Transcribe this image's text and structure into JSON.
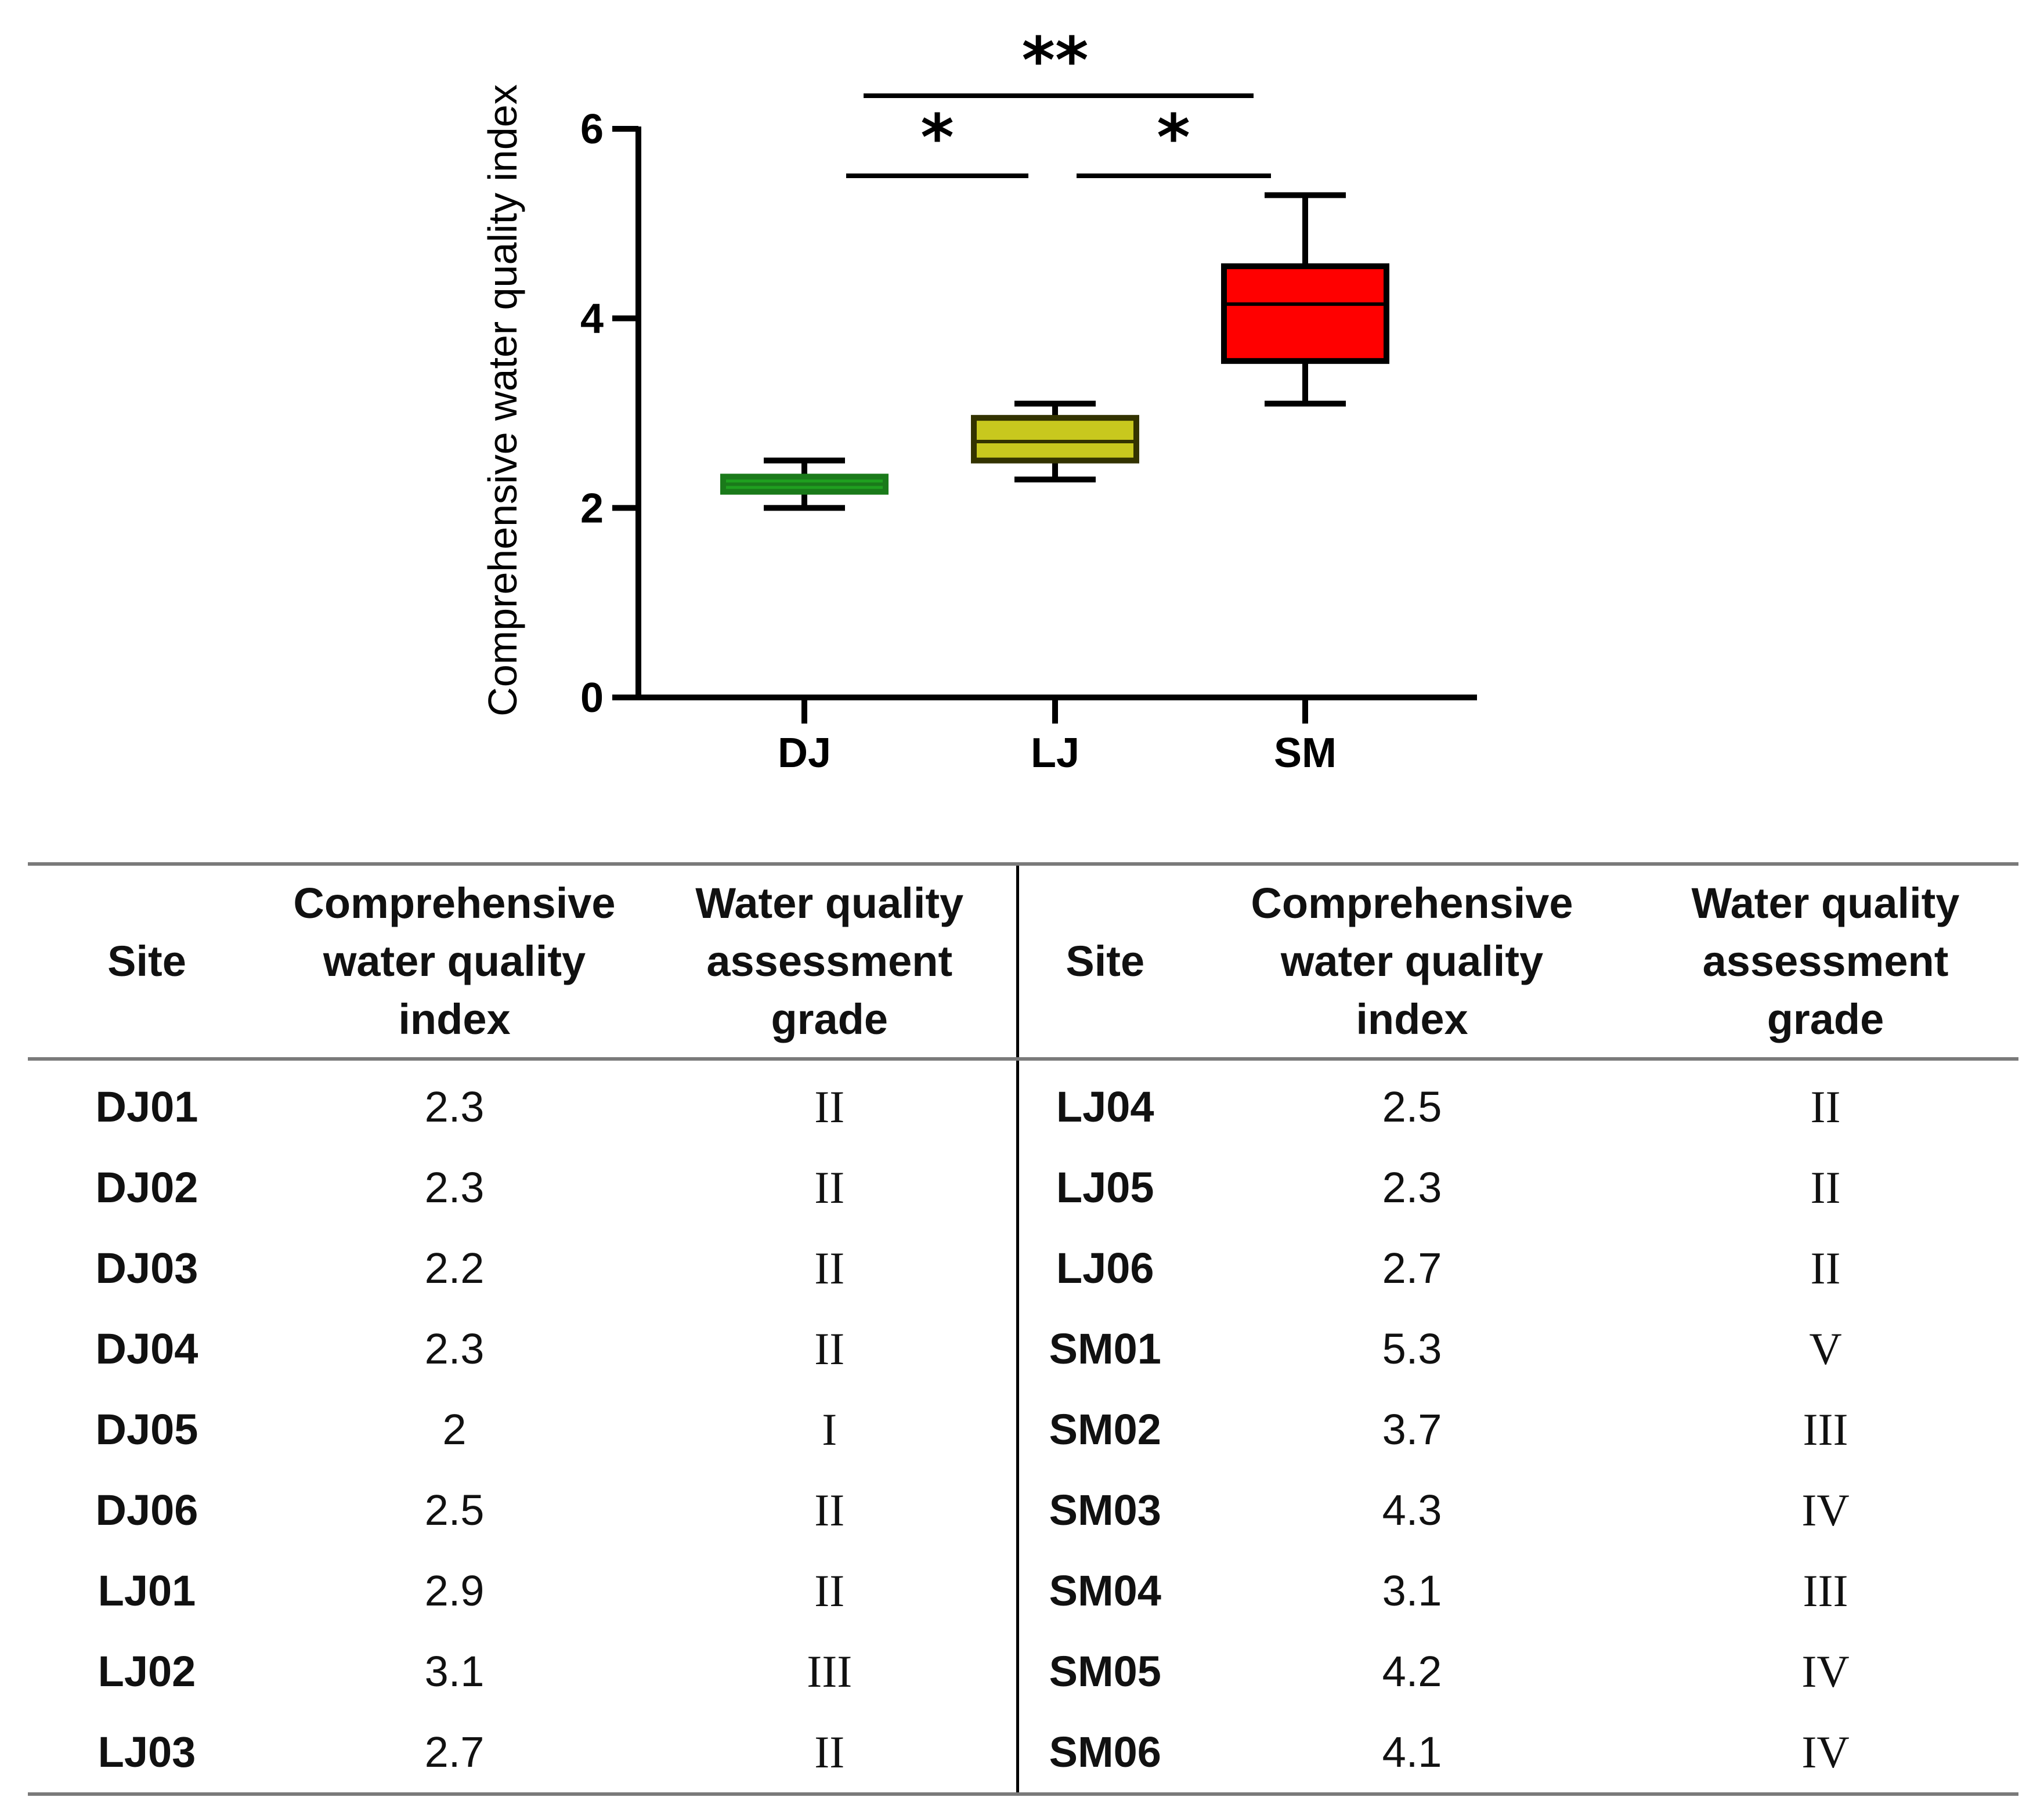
{
  "chart_data": {
    "type": "boxplot",
    "ylabel": "Comprehensive water quality index",
    "ylim": [
      0,
      6
    ],
    "yticks": [
      0,
      2,
      4,
      6
    ],
    "categories": [
      "DJ",
      "LJ",
      "SM"
    ],
    "boxes": [
      {
        "name": "DJ",
        "min": 2.0,
        "q1": 2.17,
        "median": 2.25,
        "q3": 2.33,
        "max": 2.5,
        "color": "#1a7a1a",
        "fill": "#1fa01f"
      },
      {
        "name": "LJ",
        "min": 2.3,
        "q1": 2.5,
        "median": 2.7,
        "q3": 2.95,
        "max": 3.1,
        "color": "#333300",
        "fill": "#c8c81e"
      },
      {
        "name": "SM",
        "min": 3.1,
        "q1": 3.55,
        "median": 4.15,
        "q3": 4.55,
        "max": 5.3,
        "color": "#000000",
        "fill": "#ff0000"
      }
    ],
    "significance": [
      {
        "from": "DJ",
        "to": "LJ",
        "label": "*"
      },
      {
        "from": "LJ",
        "to": "SM",
        "label": "*"
      },
      {
        "from": "DJ",
        "to": "SM",
        "label": "**"
      }
    ]
  },
  "table": {
    "headers": {
      "site": "Site",
      "index_line1": "Comprehensive",
      "index_line2": "water quality",
      "index_line3": "index",
      "grade_line1": "Water quality",
      "grade_line2": "assessment",
      "grade_line3": "grade"
    },
    "rows": [
      {
        "left": {
          "site": "DJ01",
          "index": "2.3",
          "grade": "II"
        },
        "right": {
          "site": "LJ04",
          "index": "2.5",
          "grade": "II"
        }
      },
      {
        "left": {
          "site": "DJ02",
          "index": "2.3",
          "grade": "II"
        },
        "right": {
          "site": "LJ05",
          "index": "2.3",
          "grade": "II"
        }
      },
      {
        "left": {
          "site": "DJ03",
          "index": "2.2",
          "grade": "II"
        },
        "right": {
          "site": "LJ06",
          "index": "2.7",
          "grade": "II"
        }
      },
      {
        "left": {
          "site": "DJ04",
          "index": "2.3",
          "grade": "II"
        },
        "right": {
          "site": "SM01",
          "index": "5.3",
          "grade": "V"
        }
      },
      {
        "left": {
          "site": "DJ05",
          "index": "2",
          "grade": "I"
        },
        "right": {
          "site": "SM02",
          "index": "3.7",
          "grade": "III"
        }
      },
      {
        "left": {
          "site": "DJ06",
          "index": "2.5",
          "grade": "II"
        },
        "right": {
          "site": "SM03",
          "index": "4.3",
          "grade": "IV"
        }
      },
      {
        "left": {
          "site": "LJ01",
          "index": "2.9",
          "grade": "II"
        },
        "right": {
          "site": "SM04",
          "index": "3.1",
          "grade": "III"
        }
      },
      {
        "left": {
          "site": "LJ02",
          "index": "3.1",
          "grade": "III"
        },
        "right": {
          "site": "SM05",
          "index": "4.2",
          "grade": "IV"
        }
      },
      {
        "left": {
          "site": "LJ03",
          "index": "2.7",
          "grade": "II"
        },
        "right": {
          "site": "SM06",
          "index": "4.1",
          "grade": "IV"
        }
      }
    ]
  }
}
